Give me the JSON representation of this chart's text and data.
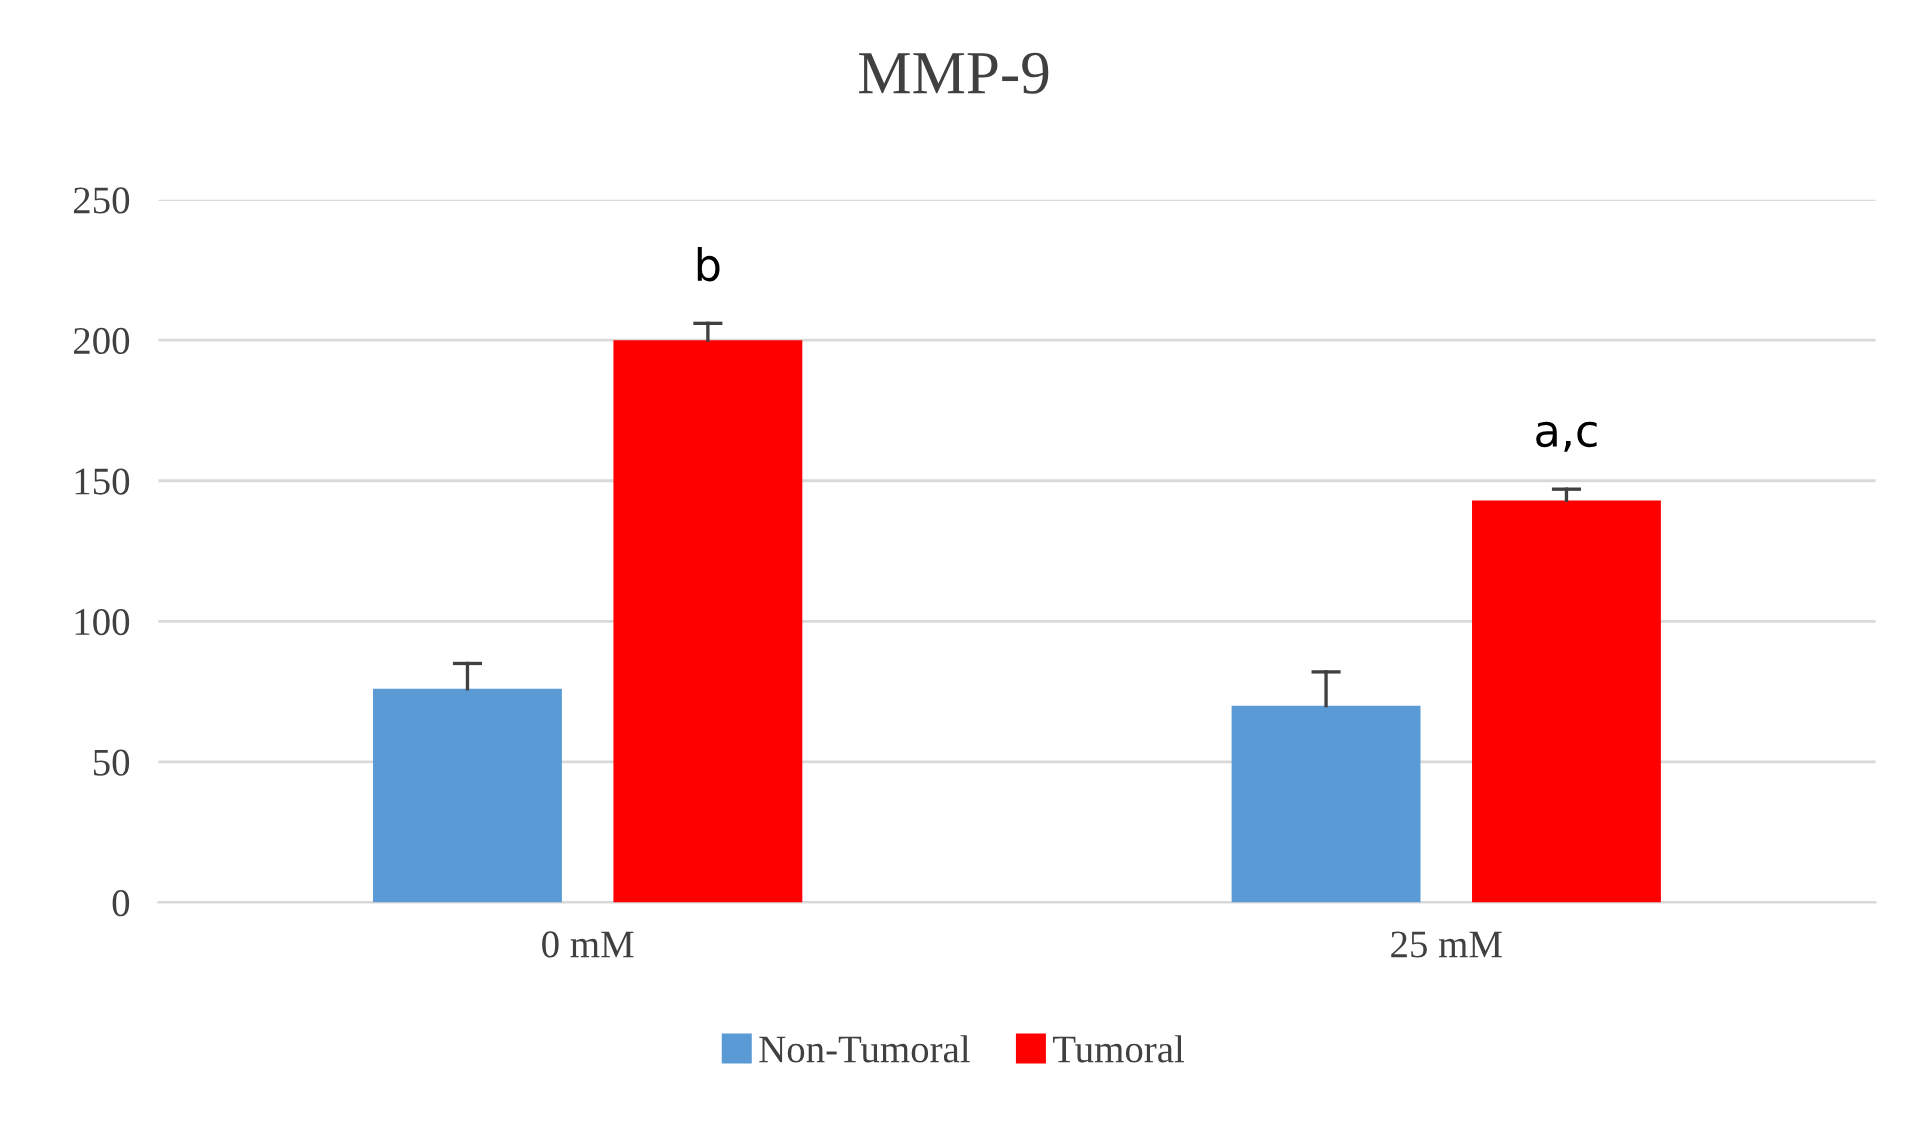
{
  "chart_data": {
    "type": "bar",
    "title": "MMP-9",
    "categories": [
      "0 mM",
      "25 mM"
    ],
    "series": [
      {
        "name": "Non-Tumoral",
        "color": "#5b9bd5",
        "values": [
          76,
          70
        ],
        "errors": [
          [
            76,
            85
          ],
          [
            70,
            82
          ]
        ]
      },
      {
        "name": "Tumoral",
        "color": "#ff0000",
        "values": [
          200,
          143
        ],
        "errors": [
          [
            200,
            206
          ],
          [
            143,
            147
          ]
        ]
      }
    ],
    "annotations": [
      "b",
      "a,c"
    ],
    "ylim": [
      0,
      250
    ],
    "yticks": [
      0,
      50,
      100,
      150,
      200,
      250
    ],
    "grid": "y",
    "legend": "bottom"
  }
}
